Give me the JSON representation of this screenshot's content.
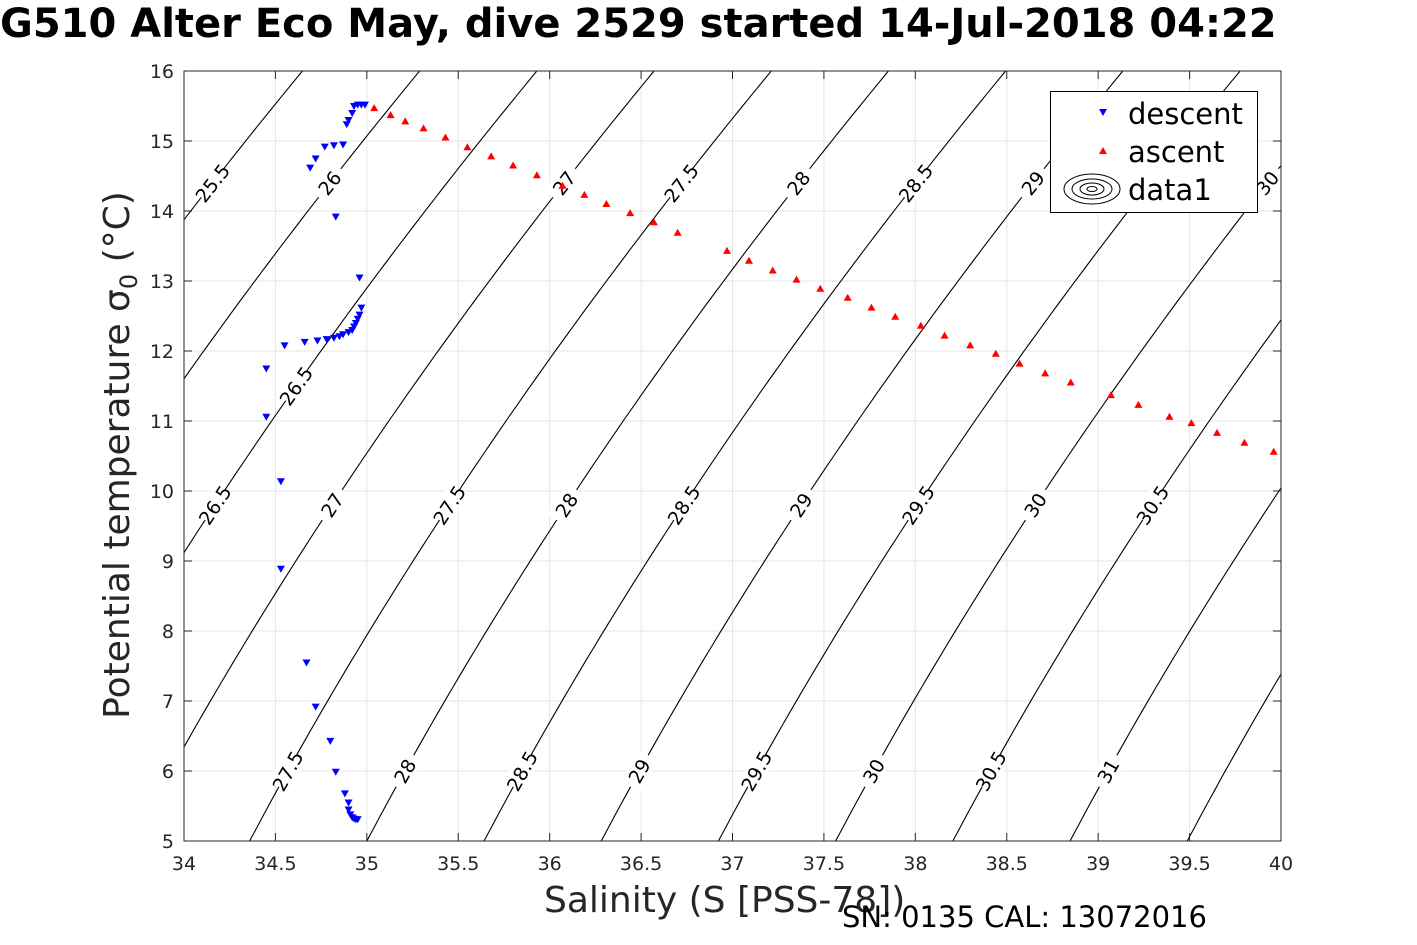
{
  "title": "G510 Alter Eco May, dive 2529 started 14-Jul-2018 04:22",
  "xlabel": "Salinity (S [PSS-78])",
  "ylabel_main": "Potential temperature σ",
  "ylabel_sub": "0",
  "ylabel_unit": " (°C)",
  "footer": "SN: 0135  CAL: 13072016",
  "colors": {
    "descent": "#0000ff",
    "ascent": "#ff0000",
    "contour": "#000000",
    "grid": "#e6e6e6"
  },
  "legend": [
    {
      "label": "descent",
      "marker": "triangle-down"
    },
    {
      "label": "ascent",
      "marker": "triangle-up"
    },
    {
      "label": "data1",
      "marker": "contour-ellipses"
    }
  ],
  "chart_data": {
    "type": "scatter",
    "xlabel": "Salinity (S [PSS-78])",
    "ylabel": "Potential temperature σ 0 (°C)",
    "xlim": [
      34,
      40
    ],
    "ylim": [
      5,
      16
    ],
    "grid": true,
    "legend_position": "top-right",
    "x_ticks": [
      "34",
      "34.5",
      "35",
      "35.5",
      "36",
      "36.5",
      "37",
      "37.5",
      "38",
      "38.5",
      "39",
      "39.5",
      "40"
    ],
    "y_ticks": [
      "5",
      "6",
      "7",
      "8",
      "9",
      "10",
      "11",
      "12",
      "13",
      "14",
      "15",
      "16"
    ],
    "series": [
      {
        "name": "descent",
        "marker": "triangle-down",
        "points": [
          [
            34.95,
            15.52
          ],
          [
            34.97,
            15.52
          ],
          [
            34.99,
            15.52
          ],
          [
            34.93,
            15.5
          ],
          [
            34.92,
            15.4
          ],
          [
            34.9,
            15.3
          ],
          [
            34.89,
            15.24
          ],
          [
            34.87,
            14.95
          ],
          [
            34.82,
            14.94
          ],
          [
            34.77,
            14.92
          ],
          [
            34.72,
            14.75
          ],
          [
            34.69,
            14.62
          ],
          [
            34.83,
            13.92
          ],
          [
            34.96,
            13.05
          ],
          [
            34.97,
            12.62
          ],
          [
            34.96,
            12.52
          ],
          [
            34.95,
            12.46
          ],
          [
            34.94,
            12.4
          ],
          [
            34.93,
            12.35
          ],
          [
            34.92,
            12.3
          ],
          [
            34.9,
            12.27
          ],
          [
            34.87,
            12.24
          ],
          [
            34.85,
            12.21
          ],
          [
            34.82,
            12.19
          ],
          [
            34.78,
            12.17
          ],
          [
            34.73,
            12.15
          ],
          [
            34.66,
            12.13
          ],
          [
            34.55,
            12.08
          ],
          [
            34.45,
            11.75
          ],
          [
            34.45,
            11.06
          ],
          [
            34.53,
            10.14
          ],
          [
            34.53,
            8.89
          ],
          [
            34.67,
            7.55
          ],
          [
            34.72,
            6.92
          ],
          [
            34.8,
            6.43
          ],
          [
            34.83,
            5.99
          ],
          [
            34.88,
            5.68
          ],
          [
            34.9,
            5.55
          ],
          [
            34.9,
            5.45
          ],
          [
            34.91,
            5.38
          ],
          [
            34.92,
            5.34
          ],
          [
            34.93,
            5.32
          ],
          [
            34.94,
            5.31
          ],
          [
            34.95,
            5.31
          ]
        ]
      },
      {
        "name": "ascent",
        "marker": "triangle-up",
        "points": [
          [
            35.04,
            15.47
          ],
          [
            35.13,
            15.37
          ],
          [
            35.21,
            15.28
          ],
          [
            35.31,
            15.18
          ],
          [
            35.43,
            15.05
          ],
          [
            35.55,
            14.91
          ],
          [
            35.68,
            14.78
          ],
          [
            35.8,
            14.65
          ],
          [
            35.93,
            14.51
          ],
          [
            36.07,
            14.36
          ],
          [
            36.19,
            14.23
          ],
          [
            36.31,
            14.1
          ],
          [
            36.44,
            13.97
          ],
          [
            36.57,
            13.84
          ],
          [
            36.7,
            13.69
          ],
          [
            36.97,
            13.43
          ],
          [
            37.09,
            13.29
          ],
          [
            37.22,
            13.15
          ],
          [
            37.35,
            13.02
          ],
          [
            37.48,
            12.89
          ],
          [
            37.63,
            12.76
          ],
          [
            37.76,
            12.62
          ],
          [
            37.89,
            12.49
          ],
          [
            38.03,
            12.36
          ],
          [
            38.16,
            12.22
          ],
          [
            38.3,
            12.08
          ],
          [
            38.44,
            11.96
          ],
          [
            38.57,
            11.82
          ],
          [
            38.71,
            11.68
          ],
          [
            38.85,
            11.55
          ],
          [
            39.07,
            11.37
          ],
          [
            39.22,
            11.23
          ],
          [
            39.39,
            11.06
          ],
          [
            39.51,
            10.97
          ],
          [
            39.65,
            10.83
          ],
          [
            39.8,
            10.69
          ],
          [
            39.96,
            10.56
          ]
        ]
      }
    ],
    "contours": {
      "name": "data1",
      "levels": [
        25.5,
        26,
        26.5,
        27,
        27.5,
        28,
        28.5,
        29,
        29.5,
        30,
        30.5,
        31,
        31.5
      ],
      "level_labels": [
        "25.5",
        "26",
        "26.5",
        "27",
        "27.5",
        "28",
        "28.5",
        "29",
        "29.5",
        "30",
        "30.5",
        "31"
      ]
    }
  }
}
